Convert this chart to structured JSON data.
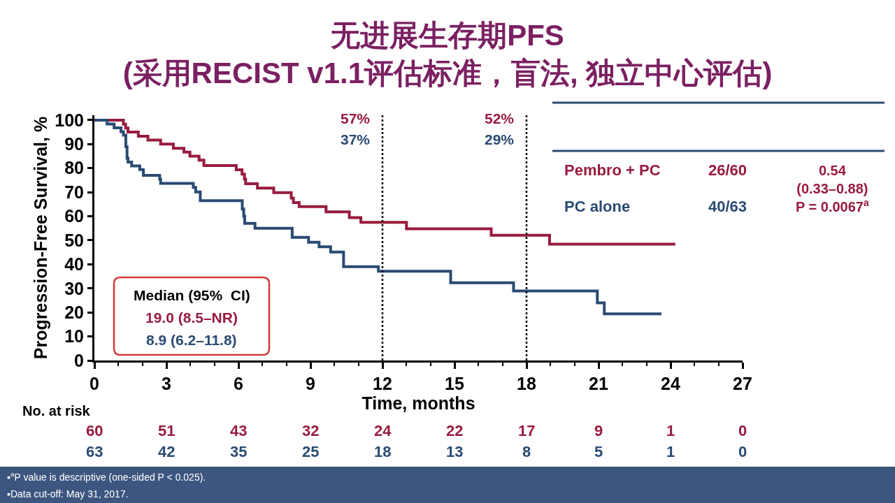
{
  "chart_data": {
    "type": "step",
    "title": "无进展生存期PFS\n(采用RECIST v1.1评估标准，盲法, 独立中心评估)",
    "xlabel": "Time, months",
    "ylabel": "Progression-Free Survival, %",
    "xlim": [
      0,
      27
    ],
    "xticks": [
      0,
      {
        "value": 1,
        "label": null
      },
      {
        "value": 2,
        "label": null
      },
      3,
      {
        "value": 4,
        "label": null
      },
      {
        "value": 5,
        "label": null
      },
      6,
      {
        "value": 7,
        "label": null
      },
      {
        "value": 8,
        "label": null
      },
      9,
      {
        "value": 10,
        "label": null
      },
      {
        "value": 11,
        "label": null
      },
      12,
      {
        "value": 13,
        "label": null
      },
      {
        "value": 14,
        "label": null
      },
      15,
      {
        "value": 16,
        "label": null
      },
      {
        "value": 17,
        "label": null
      },
      18,
      {
        "value": 19,
        "label": null
      },
      {
        "value": 20,
        "label": null
      },
      21,
      {
        "value": 22,
        "label": null
      },
      {
        "value": 23,
        "label": null
      },
      24,
      {
        "value": 25,
        "label": null
      },
      {
        "value": 26,
        "label": null
      },
      27
    ],
    "ylim": [
      0,
      102
    ],
    "yticks": [
      0,
      10,
      20,
      30,
      40,
      50,
      60,
      70,
      80,
      90,
      100
    ],
    "series": [
      {
        "name": "Pembro + PC",
        "color": "#981b3e",
        "x": [
          0,
          1.21,
          1.3,
          1.4,
          1.83,
          2.23,
          2.76,
          3.29,
          3.73,
          3.98,
          4.36,
          4.56,
          5.91,
          6.15,
          6.25,
          6.3,
          6.79,
          7.47,
          8.2,
          8.29,
          8.53,
          9.65,
          10.62,
          11.1,
          13.0,
          16.53,
          18.96,
          24.2
        ],
        "values": [
          100,
          98.3,
          96.7,
          95.0,
          93.3,
          91.7,
          90.0,
          88.3,
          86.7,
          85.0,
          83.3,
          81.1,
          79.3,
          77.5,
          75.5,
          73.5,
          71.7,
          69.8,
          67.6,
          65.7,
          64.0,
          61.8,
          59.4,
          57.5,
          54.8,
          52.1,
          48.4,
          48.4
        ]
      },
      {
        "name": "PC alone",
        "color": "#2a4b73",
        "x": [
          0,
          0.53,
          0.82,
          1.11,
          1.21,
          1.31,
          1.36,
          1.4,
          1.55,
          1.89,
          2.04,
          2.72,
          2.76,
          4.12,
          4.22,
          4.41,
          6.16,
          6.22,
          6.26,
          6.69,
          8.24,
          8.92,
          9.36,
          9.84,
          10.38,
          11.83,
          14.84,
          17.46,
          20.95,
          21.24,
          23.62
        ],
        "values": [
          100,
          98.4,
          96.8,
          95.2,
          93.7,
          88.9,
          84.1,
          82.5,
          80.9,
          79.4,
          77.0,
          75.4,
          73.7,
          72.0,
          70.1,
          66.5,
          63.0,
          60.0,
          57.0,
          55.0,
          51.2,
          49.2,
          47.3,
          45.1,
          39.0,
          37.1,
          32.3,
          28.9,
          24.0,
          19.4,
          19.4
        ]
      }
    ],
    "ref_lines": [
      {
        "axis": "x",
        "value": 12,
        "color": "#000000",
        "line_style": "dotted"
      },
      {
        "axis": "x",
        "value": 18,
        "color": "#000000",
        "line_style": "dotted"
      }
    ],
    "annotations": [
      "57%",
      "37%",
      "52%",
      "29%",
      "26/60",
      "40/63",
      "0.54\n(0.33–0.88)\nP = 0.0067$^{a}$",
      "Median (95%  CI)",
      "19.0 (8.5–NR)",
      "8.9 (6.2–11.8)",
      "No. at risk",
      "60",
      "51",
      "43",
      "32",
      "24",
      "22",
      "17",
      "9",
      "1",
      "0",
      "63",
      "42",
      "35",
      "25",
      "18",
      "13",
      "8",
      "5",
      "1",
      "0",
      "▪$^{a}$P value is descriptive (one-sided P < 0.025).",
      "▪Data cut-off: May 31, 2017."
    ]
  }
}
